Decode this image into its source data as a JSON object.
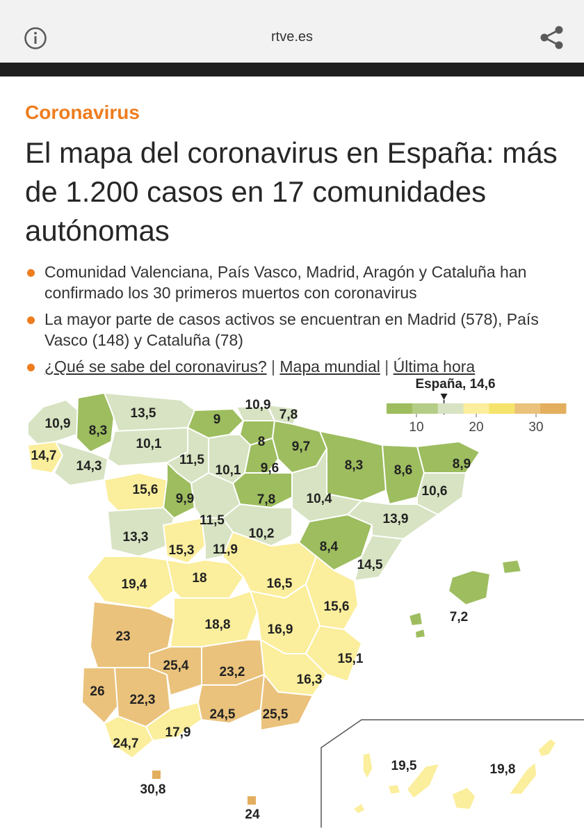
{
  "browser": {
    "domain": "rtve.es",
    "info_icon": "info-icon",
    "share_icon": "share-icon"
  },
  "article": {
    "kicker": "Coronavirus",
    "headline": "El mapa del coronavirus en España: más de 1.200 casos en 17 comunidades autónomas",
    "bullets": [
      "Comunidad Valenciana, País Vasco, Madrid, Aragón y Cataluña han confirmado los 30 primeros muertos con coronavirus",
      "La mayor parte de casos activos se encuentran en Madrid (578), País Vasco (148) y Cataluña (78)"
    ],
    "links": {
      "first": "¿Qué se sabe del coronavirus?",
      "second": "Mapa mundial",
      "third": "Última hora",
      "separator": "|"
    }
  },
  "map": {
    "legend": {
      "marker_label": "España, 14,6",
      "marker_value": 14.6,
      "scale_min": 5,
      "scale_max": 35,
      "ticks": [
        "10",
        "20",
        "30"
      ],
      "tick_values": [
        10,
        20,
        30
      ],
      "colors": [
        "#9dbd5f",
        "#b4cd86",
        "#d7e3c2",
        "#fbee9c",
        "#f6e36c",
        "#eac27c",
        "#e3ae5e"
      ]
    },
    "province_values": [
      "10,9",
      "8,3",
      "13,5",
      "10,9",
      "7,8",
      "9",
      "14,7",
      "14,3",
      "10,1",
      "8",
      "9,7",
      "11,5",
      "10,1",
      "9,6",
      "8,3",
      "8,6",
      "8,9",
      "15,6",
      "9,9",
      "7,8",
      "10,4",
      "10,6",
      "11,5",
      "13,9",
      "13,3",
      "10,2",
      "15,3",
      "11,9",
      "8,4",
      "14,5",
      "19,4",
      "18",
      "16,5",
      "15,6",
      "7,2",
      "23",
      "18,8",
      "16,9",
      "25,4",
      "23,2",
      "15,1",
      "26",
      "22,3",
      "16,3",
      "24,5",
      "25,5",
      "17,9",
      "24,7",
      "30,8",
      "24",
      "19,5",
      "19,8"
    ]
  }
}
